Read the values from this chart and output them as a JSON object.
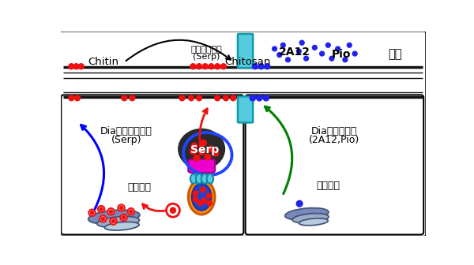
{
  "bg_color": "#ffffff",
  "red_dot_color": "#ee1111",
  "blue_dot_color": "#2222ee",
  "golgi_color": "#7788bb",
  "golgi_dark": "#445577",
  "tube_color": "#55ccdd",
  "serp_body_dark": "#2a2a2a",
  "serp_outline_blue": "#2244ff",
  "magenta_color": "#ee00cc",
  "orange_ves": "#ff8800",
  "label_chitin": "Chitin",
  "label_chitosan": "Chitosan",
  "label_2a12": "2A12",
  "label_pio": "Pio",
  "label_kanku": "管腔",
  "label_kichin": "キチン質修飾",
  "label_serp_paren": "(Serp)",
  "label_dia_hi": "Dia非依存的経路",
  "label_dia_hi_sub": "(Serp)",
  "label_dia_dep": "Dia依存的経路",
  "label_dia_dep_sub": "(2A12,Pio)",
  "label_golgi": "ゴルジ体",
  "label_serp": "Serp"
}
